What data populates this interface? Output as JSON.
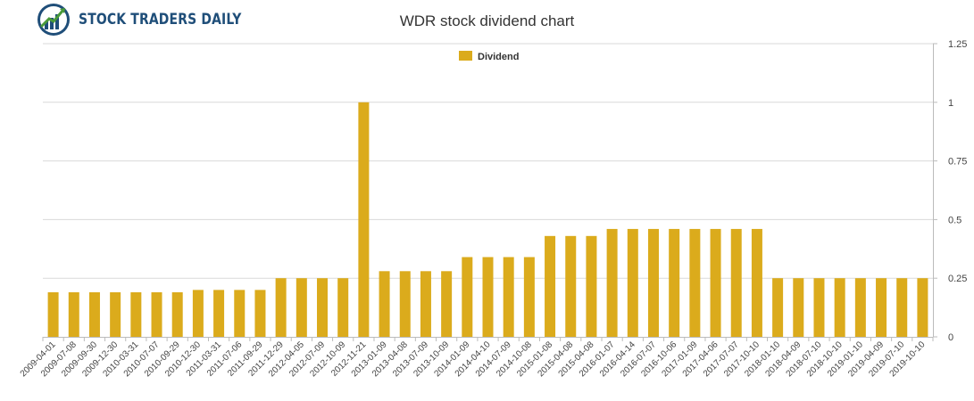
{
  "brand": {
    "name": "STOCK TRADERS DAILY"
  },
  "colors": {
    "bar": "#dbab1c",
    "axis": "#bbbbbb",
    "grid": "#d9d9d9",
    "logo_blue": "#1f4e79",
    "logo_green": "#4a9a3a"
  },
  "chart_data": {
    "type": "bar",
    "title": "WDR stock dividend chart",
    "xlabel": "",
    "ylabel": "",
    "ylim": [
      0,
      1.25
    ],
    "yticks": [
      "0",
      "0.25",
      "0.5",
      "0.75",
      "1",
      "1.25"
    ],
    "grid": true,
    "legend_position": "top-center",
    "series": [
      {
        "name": "Dividend",
        "values": [
          0.19,
          0.19,
          0.19,
          0.19,
          0.19,
          0.19,
          0.19,
          0.2,
          0.2,
          0.2,
          0.2,
          0.25,
          0.25,
          0.25,
          0.25,
          1.0,
          0.28,
          0.28,
          0.28,
          0.28,
          0.34,
          0.34,
          0.34,
          0.34,
          0.43,
          0.43,
          0.43,
          0.46,
          0.46,
          0.46,
          0.46,
          0.46,
          0.46,
          0.46,
          0.46,
          0.25,
          0.25,
          0.25,
          0.25,
          0.25,
          0.25,
          0.25,
          0.25
        ]
      }
    ],
    "categories": [
      "2009-04-01",
      "2009-07-08",
      "2009-09-30",
      "2009-12-30",
      "2010-03-31",
      "2010-07-07",
      "2010-09-29",
      "2010-12-30",
      "2011-03-31",
      "2011-07-06",
      "2011-09-29",
      "2011-12-29",
      "2012-04-05",
      "2012-07-09",
      "2012-10-09",
      "2012-11-21",
      "2013-01-09",
      "2013-04-08",
      "2013-07-09",
      "2013-10-09",
      "2014-01-09",
      "2014-04-10",
      "2014-07-09",
      "2014-10-08",
      "2015-01-08",
      "2015-04-08",
      "2015-04-08",
      "2016-01-07",
      "2016-04-14",
      "2016-07-07",
      "2016-10-06",
      "2017-01-09",
      "2017-04-06",
      "2017-07-07",
      "2017-10-10",
      "2018-01-10",
      "2018-04-09",
      "2018-07-10",
      "2018-10-10",
      "2019-01-10",
      "2019-04-09",
      "2019-07-10",
      "2019-10-10"
    ]
  }
}
